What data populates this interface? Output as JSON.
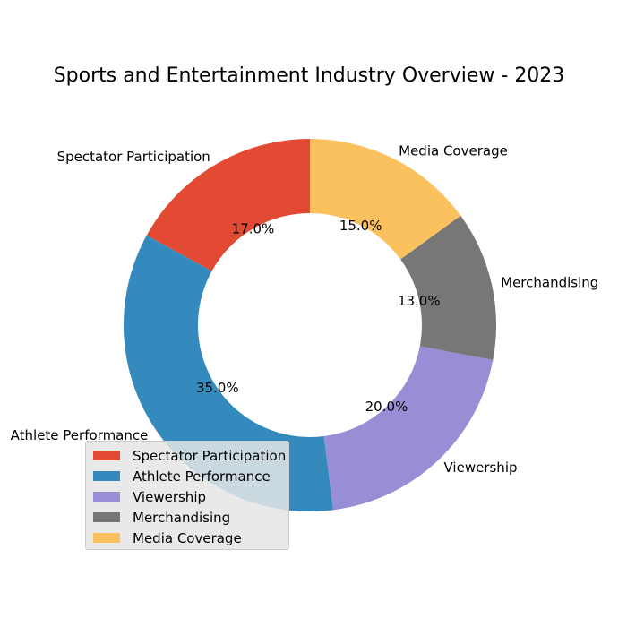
{
  "chart_data": {
    "type": "pie",
    "variant": "donut",
    "title": "Sports and Entertainment Industry Overview - 2023",
    "categories": [
      "Spectator Participation",
      "Athlete Performance",
      "Viewership",
      "Merchandising",
      "Media Coverage"
    ],
    "values": [
      17.0,
      35.0,
      20.0,
      13.0,
      15.0
    ],
    "percent_labels": [
      "17.0%",
      "35.0%",
      "20.0%",
      "13.0%",
      "15.0%"
    ],
    "colors": [
      "#E24A33",
      "#348ABD",
      "#988ED5",
      "#777777",
      "#FBC15E"
    ],
    "legend_position": "lower-left",
    "start_angle": "90 degrees (top), counterclockwise"
  }
}
